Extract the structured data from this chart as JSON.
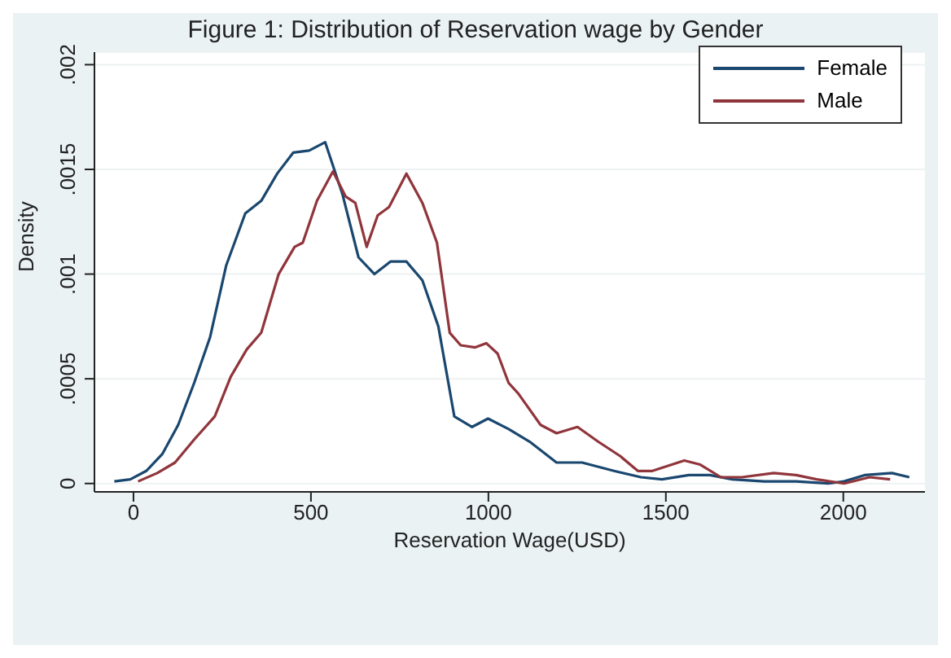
{
  "chart_data": {
    "type": "line",
    "title": "Figure 1: Distribution of Reservation wage by Gender",
    "xlabel": "Reservation Wage(USD)",
    "ylabel": "Density",
    "xlim": [
      -110,
      2230
    ],
    "xticks": [
      0,
      500,
      1000,
      1500,
      2000
    ],
    "ylim": [
      -4e-05,
      0.00206
    ],
    "yticks": [
      0,
      {
        "value": 0.0005,
        "label": ".0005"
      },
      {
        "value": 0.001,
        "label": ".001"
      },
      {
        "value": 0.0015,
        "label": ".0015"
      },
      {
        "value": 0.002,
        "label": ".002"
      }
    ],
    "grid": "y",
    "legend": "top right",
    "marker": "none",
    "line_style": "solid",
    "series": [
      {
        "name": "Female",
        "color": "#1a476f",
        "x": [
          -54,
          -9,
          36,
          81,
          126,
          171,
          216,
          261,
          315,
          360,
          405,
          450,
          495,
          540,
          589,
          634,
          679,
          724,
          769,
          814,
          859,
          904,
          954,
          999,
          1057,
          1116,
          1192,
          1264,
          1354,
          1430,
          1489,
          1565,
          1624,
          1687,
          1777,
          1867,
          1957,
          2002,
          2060,
          2137,
          2186
        ],
        "values": [
          1e-05,
          2e-05,
          6e-05,
          0.00014,
          0.00028,
          0.00048,
          0.0007,
          0.00104,
          0.00129,
          0.00135,
          0.00148,
          0.00158,
          0.00159,
          0.00163,
          0.00138,
          0.00108,
          0.001,
          0.00106,
          0.00106,
          0.00097,
          0.00075,
          0.00032,
          0.00027,
          0.00031,
          0.00026,
          0.0002,
          0.0001,
          0.0001,
          6e-05,
          3e-05,
          2e-05,
          4e-05,
          4e-05,
          2e-05,
          1e-05,
          1e-05,
          0,
          1e-05,
          4e-05,
          5e-05,
          3e-05
        ]
      },
      {
        "name": "Male",
        "color": "#90353b",
        "x": [
          13,
          67,
          117,
          171,
          229,
          274,
          319,
          360,
          409,
          454,
          477,
          517,
          562,
          598,
          625,
          657,
          688,
          720,
          769,
          814,
          855,
          891,
          922,
          963,
          994,
          1026,
          1057,
          1084,
          1147,
          1192,
          1251,
          1309,
          1372,
          1421,
          1462,
          1552,
          1597,
          1655,
          1714,
          1804,
          1867,
          1925,
          2002,
          2074,
          2132
        ],
        "values": [
          1e-05,
          5e-05,
          0.0001,
          0.00021,
          0.00032,
          0.00051,
          0.00064,
          0.00072,
          0.001,
          0.00113,
          0.00115,
          0.00135,
          0.00149,
          0.00137,
          0.00134,
          0.00113,
          0.00128,
          0.00132,
          0.00148,
          0.00134,
          0.00115,
          0.00072,
          0.00066,
          0.00065,
          0.00067,
          0.00062,
          0.00048,
          0.00043,
          0.00028,
          0.00024,
          0.00027,
          0.0002,
          0.00013,
          6e-05,
          6e-05,
          0.00011,
          9e-05,
          3e-05,
          3e-05,
          5e-05,
          4e-05,
          2e-05,
          0,
          3e-05,
          2e-05
        ]
      }
    ]
  }
}
